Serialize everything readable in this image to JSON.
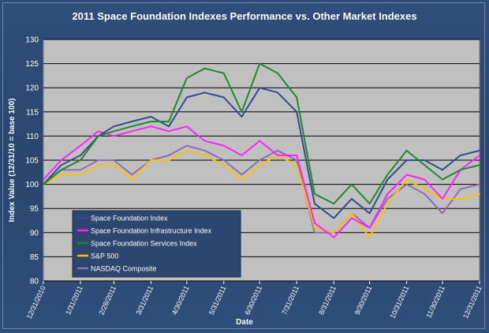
{
  "chart_data": {
    "type": "line",
    "title": "2011 Space Foundation Indexes Performance vs. Other Market Indexes",
    "xlabel": "Date",
    "ylabel": "Index Value (12/31/10 = base 100)",
    "ylim": [
      80,
      130
    ],
    "yticks": [
      "80",
      "85",
      "90",
      "95",
      "100",
      "105",
      "110",
      "115",
      "120",
      "125",
      "130"
    ],
    "x_tick_labels": [
      "12/31/2010",
      "1/31/2011",
      "2/28/2011",
      "3/31/2011",
      "4/30/2011",
      "5/31/2011",
      "6/30/2011",
      "7/31/2011",
      "8/31/2011",
      "9/30/2011",
      "10/31/2011",
      "11/30/2011",
      "12/31/2011"
    ],
    "grid": "horizontal",
    "legend_position": "bottom-left",
    "series": [
      {
        "name": "Space Foundation Index",
        "color": "#2f4d8f",
        "x": [
          "12/31/2010",
          "1/15/2011",
          "1/31/2011",
          "2/15/2011",
          "2/28/2011",
          "3/15/2011",
          "3/31/2011",
          "4/15/2011",
          "4/30/2011",
          "5/15/2011",
          "5/31/2011",
          "6/15/2011",
          "6/30/2011",
          "7/15/2011",
          "7/31/2011",
          "8/15/2011",
          "8/31/2011",
          "9/15/2011",
          "9/30/2011",
          "10/15/2011",
          "10/31/2011",
          "11/15/2011",
          "11/30/2011",
          "12/15/2011",
          "12/31/2011"
        ],
        "values": [
          100,
          104,
          106,
          110,
          112,
          113,
          114,
          112,
          118,
          119,
          118,
          114,
          120,
          119,
          115,
          96,
          93,
          97,
          94,
          101,
          105,
          105,
          103,
          106,
          107
        ]
      },
      {
        "name": "Space Foundation Infrastructure Index",
        "color": "#ff22ff",
        "x": [
          "12/31/2010",
          "1/15/2011",
          "1/31/2011",
          "2/15/2011",
          "2/28/2011",
          "3/15/2011",
          "3/31/2011",
          "4/15/2011",
          "4/30/2011",
          "5/15/2011",
          "5/31/2011",
          "6/15/2011",
          "6/30/2011",
          "7/15/2011",
          "7/31/2011",
          "8/15/2011",
          "8/31/2011",
          "9/15/2011",
          "9/30/2011",
          "10/15/2011",
          "10/31/2011",
          "11/15/2011",
          "11/30/2011",
          "12/15/2011",
          "12/31/2011"
        ],
        "values": [
          101,
          105,
          108,
          111,
          110,
          111,
          112,
          111,
          112,
          109,
          108,
          106,
          109,
          106,
          106,
          92,
          89,
          93,
          91,
          98,
          102,
          101,
          97,
          103,
          106
        ]
      },
      {
        "name": "Space Foundation Services Index",
        "color": "#1f8a2a",
        "x": [
          "12/31/2010",
          "1/15/2011",
          "1/31/2011",
          "2/15/2011",
          "2/28/2011",
          "3/15/2011",
          "3/31/2011",
          "4/15/2011",
          "4/30/2011",
          "5/15/2011",
          "5/31/2011",
          "6/15/2011",
          "6/30/2011",
          "7/15/2011",
          "7/31/2011",
          "8/15/2011",
          "8/31/2011",
          "9/15/2011",
          "9/30/2011",
          "10/15/2011",
          "10/31/2011",
          "11/15/2011",
          "11/30/2011",
          "12/15/2011",
          "12/31/2011"
        ],
        "values": [
          100,
          103,
          105,
          110,
          111,
          112,
          113,
          113,
          122,
          124,
          123,
          115,
          125,
          123,
          118,
          98,
          96,
          100,
          96,
          102,
          107,
          104,
          101,
          103,
          104
        ]
      },
      {
        "name": "S&P 500",
        "color": "#ffc000",
        "x": [
          "12/31/2010",
          "1/15/2011",
          "1/31/2011",
          "2/15/2011",
          "2/28/2011",
          "3/15/2011",
          "3/31/2011",
          "4/15/2011",
          "4/30/2011",
          "5/15/2011",
          "5/31/2011",
          "6/15/2011",
          "6/30/2011",
          "7/15/2011",
          "7/31/2011",
          "8/15/2011",
          "8/31/2011",
          "9/15/2011",
          "9/30/2011",
          "10/15/2011",
          "10/31/2011",
          "11/15/2011",
          "11/30/2011",
          "12/15/2011",
          "12/31/2011"
        ],
        "values": [
          100,
          102,
          102,
          104,
          104,
          101,
          105,
          105,
          107,
          106,
          104,
          101,
          104,
          106,
          104,
          91,
          90,
          94,
          89,
          96,
          101,
          99,
          97,
          97,
          98
        ]
      },
      {
        "name": "NASDAQ Composite",
        "color": "#8a6fb5",
        "x": [
          "12/31/2010",
          "1/15/2011",
          "1/31/2011",
          "2/15/2011",
          "2/28/2011",
          "3/15/2011",
          "3/31/2011",
          "4/15/2011",
          "4/30/2011",
          "5/15/2011",
          "5/31/2011",
          "6/15/2011",
          "6/30/2011",
          "7/15/2011",
          "7/31/2011",
          "8/15/2011",
          "8/31/2011",
          "9/15/2011",
          "9/30/2011",
          "10/15/2011",
          "10/31/2011",
          "11/15/2011",
          "11/30/2011",
          "12/15/2011",
          "12/31/2011"
        ],
        "values": [
          100,
          103,
          103,
          105,
          105,
          102,
          105,
          106,
          108,
          107,
          105,
          102,
          105,
          107,
          105,
          90,
          90,
          94,
          91,
          97,
          100,
          98,
          94,
          99,
          100
        ]
      }
    ]
  }
}
